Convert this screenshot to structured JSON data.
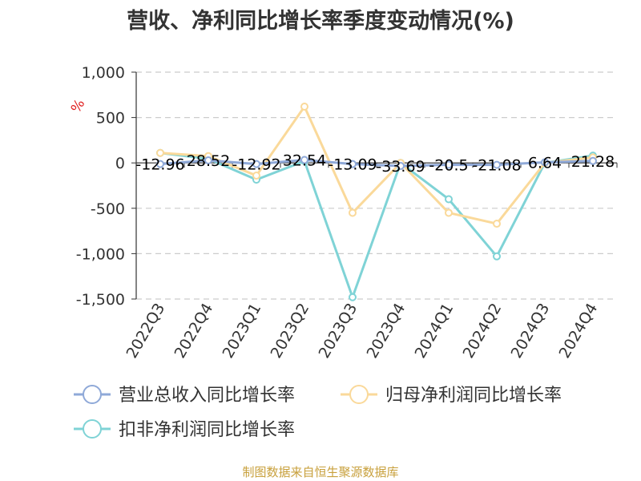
{
  "title": "营收、净利同比增长率季度变动情况(%)",
  "unit_label": "%",
  "source": "制图数据来自恒生聚源数据库",
  "chart_data": {
    "type": "line",
    "title": "营收、净利同比增长率季度变动情况(%)",
    "ylabel": "%",
    "xlabel": "",
    "ylim": [
      -1500,
      1000
    ],
    "yticks": [
      1000,
      500,
      0,
      -500,
      -1000,
      -1500
    ],
    "ytick_labels": [
      "1,000",
      "500",
      "0",
      "-500",
      "-1,000",
      "-1,500"
    ],
    "grid": true,
    "legend_position": "bottom",
    "categories": [
      "2022Q3",
      "2022Q4",
      "2023Q1",
      "2023Q2",
      "2023Q3",
      "2023Q4",
      "2024Q1",
      "2024Q2",
      "2024Q3",
      "2024Q4"
    ],
    "series": [
      {
        "name": "营业总收入同比增长率",
        "color": "#8fa9d8",
        "values": [
          -12.96,
          28.52,
          -12.92,
          32.54,
          -13.09,
          -33.69,
          -20.5,
          -21.08,
          6.64,
          21.28
        ],
        "labels": [
          "-12.96",
          "28.52",
          "-12.92",
          "32.54",
          "-13.09",
          "-33.69",
          "-20.5",
          "-21.08",
          "6.64",
          "21.28"
        ]
      },
      {
        "name": "归母净利润同比增长率",
        "color": "#fad99a",
        "values": [
          110,
          75,
          -140,
          620,
          -550,
          0,
          -550,
          -670,
          0,
          60
        ]
      },
      {
        "name": "扣非净利润同比增长率",
        "color": "#7fd3d6",
        "values": [
          110,
          45,
          -185,
          20,
          -1480,
          0,
          -400,
          -1030,
          0,
          80
        ]
      }
    ]
  }
}
